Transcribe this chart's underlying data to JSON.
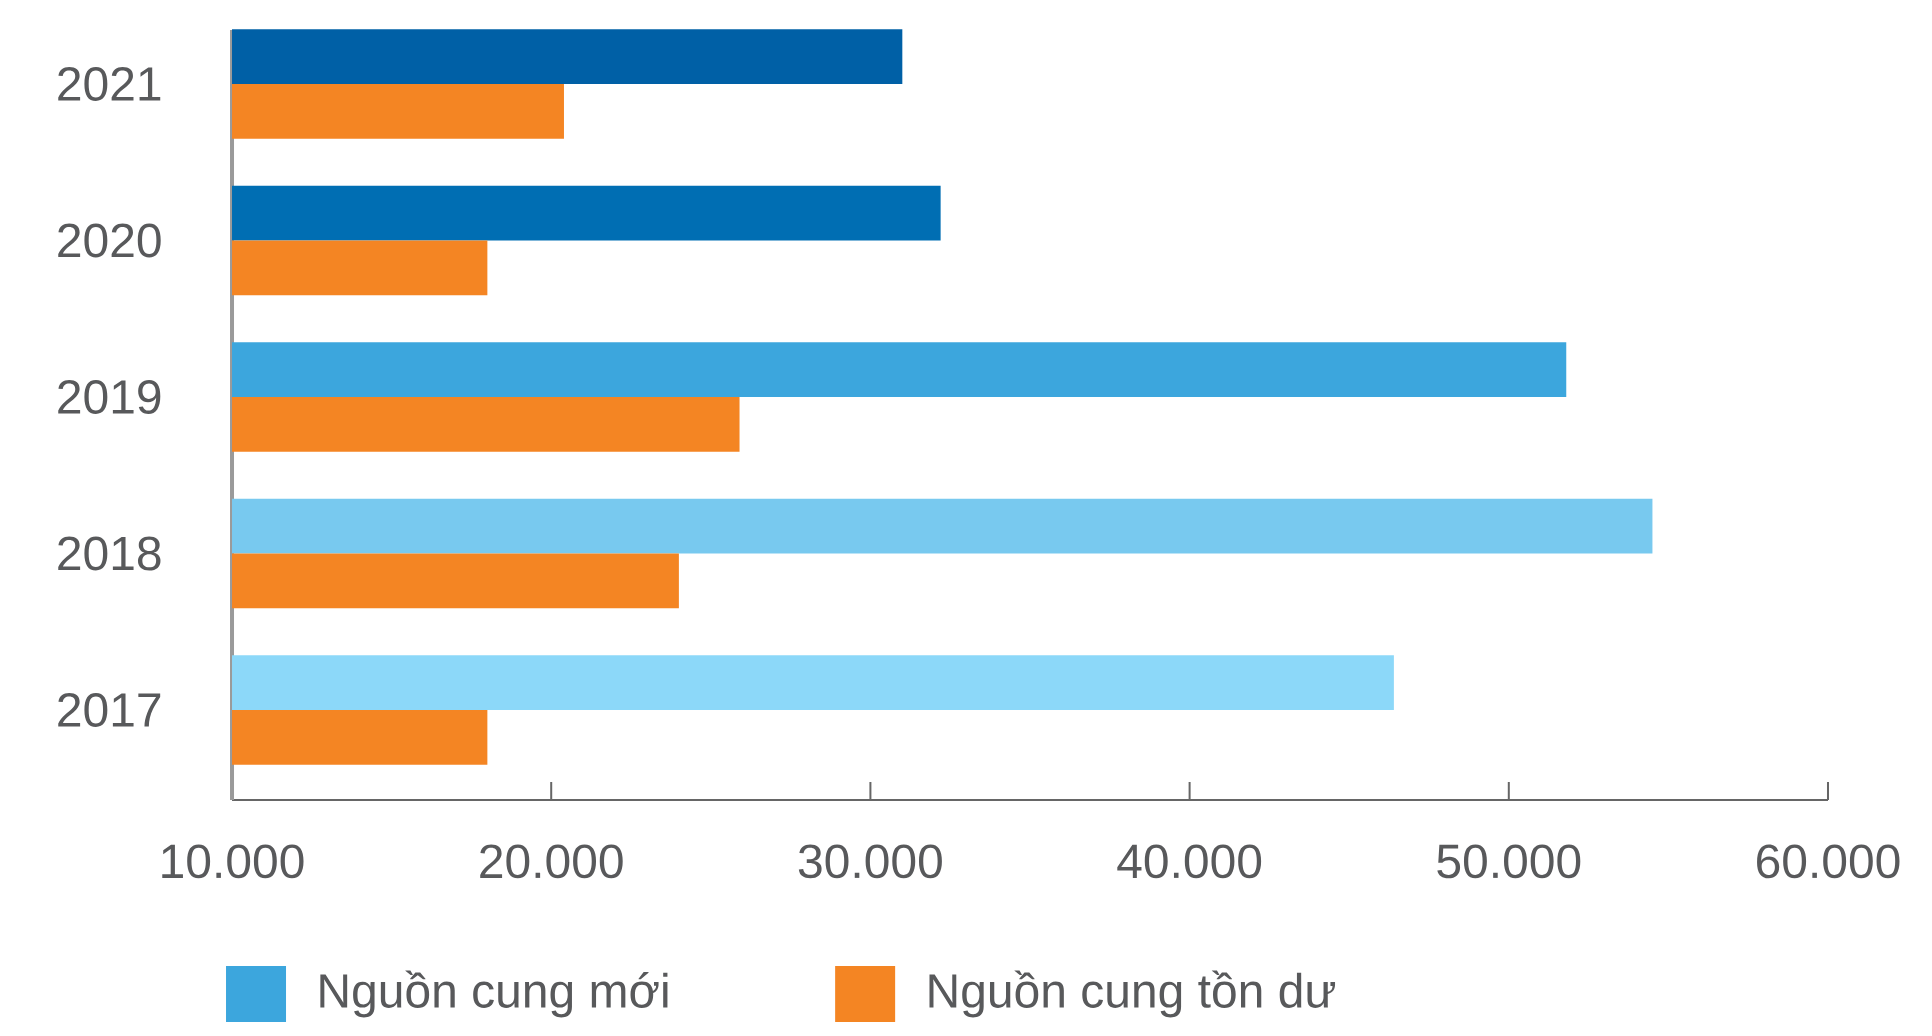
{
  "chart_data": {
    "type": "bar",
    "orientation": "horizontal",
    "categories": [
      "2021",
      "2020",
      "2019",
      "2018",
      "2017"
    ],
    "series": [
      {
        "name": "Nguồn cung mới",
        "color": "#3ca6dd",
        "colors": [
          "#0060a6",
          "#006eb3",
          "#3ca6dd",
          "#78c9ef",
          "#8cd8f9"
        ],
        "values": [
          31000,
          32200,
          51800,
          54500,
          46400
        ]
      },
      {
        "name": "Nguồn cung tồn dư",
        "color": "#f48523",
        "values": [
          20400,
          18000,
          25900,
          24000,
          18000
        ]
      }
    ],
    "xlim": [
      10000,
      60000
    ],
    "xticks": [
      {
        "value": 10000,
        "label": "10.000"
      },
      {
        "value": 20000,
        "label": "20.000"
      },
      {
        "value": 30000,
        "label": "30.000"
      },
      {
        "value": 40000,
        "label": "40.000"
      },
      {
        "value": 50000,
        "label": "50.000"
      },
      {
        "value": 60000,
        "label": "60.000"
      }
    ],
    "legend": "bottom"
  }
}
